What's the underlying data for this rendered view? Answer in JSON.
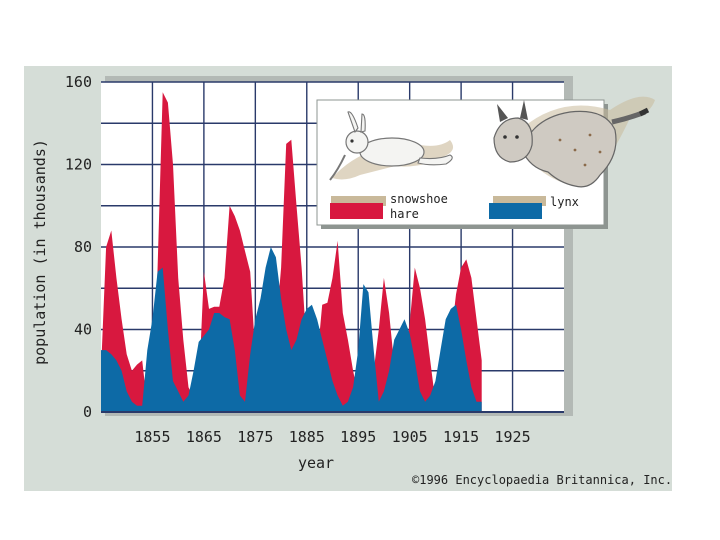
{
  "chart_data": {
    "type": "area",
    "title": "",
    "xlabel": "year",
    "ylabel": "population (in thousands)",
    "xlim": [
      1845,
      1935
    ],
    "ylim": [
      0,
      160
    ],
    "x_ticks": [
      "1855",
      "1865",
      "1875",
      "1885",
      "1895",
      "1905",
      "1915",
      "1925"
    ],
    "y_ticks": [
      "0",
      "40",
      "80",
      "120",
      "160"
    ],
    "grid": true,
    "legend_position": "top-right",
    "series": [
      {
        "name": "snowshoe hare",
        "color": "#d8183f",
        "points": [
          [
            1845,
            20
          ],
          [
            1846,
            80
          ],
          [
            1847,
            88
          ],
          [
            1848,
            65
          ],
          [
            1849,
            45
          ],
          [
            1850,
            28
          ],
          [
            1851,
            20
          ],
          [
            1852,
            23
          ],
          [
            1853,
            25
          ],
          [
            1854,
            3
          ],
          [
            1855,
            3
          ],
          [
            1856,
            70
          ],
          [
            1857,
            155
          ],
          [
            1858,
            150
          ],
          [
            1859,
            120
          ],
          [
            1860,
            65
          ],
          [
            1861,
            35
          ],
          [
            1862,
            12
          ],
          [
            1863,
            7
          ],
          [
            1864,
            10
          ],
          [
            1865,
            68
          ],
          [
            1866,
            50
          ],
          [
            1867,
            51
          ],
          [
            1868,
            51
          ],
          [
            1869,
            65
          ],
          [
            1870,
            100
          ],
          [
            1871,
            95
          ],
          [
            1872,
            88
          ],
          [
            1873,
            78
          ],
          [
            1874,
            68
          ],
          [
            1875,
            28
          ],
          [
            1876,
            10
          ],
          [
            1877,
            12
          ],
          [
            1878,
            20
          ],
          [
            1879,
            40
          ],
          [
            1880,
            70
          ],
          [
            1881,
            130
          ],
          [
            1882,
            132
          ],
          [
            1883,
            100
          ],
          [
            1884,
            70
          ],
          [
            1885,
            30
          ],
          [
            1886,
            20
          ],
          [
            1887,
            25
          ],
          [
            1888,
            52
          ],
          [
            1889,
            53
          ],
          [
            1890,
            65
          ],
          [
            1891,
            83
          ],
          [
            1892,
            48
          ],
          [
            1893,
            35
          ],
          [
            1894,
            20
          ],
          [
            1895,
            8
          ],
          [
            1896,
            10
          ],
          [
            1897,
            12
          ],
          [
            1898,
            20
          ],
          [
            1899,
            40
          ],
          [
            1900,
            65
          ],
          [
            1901,
            48
          ],
          [
            1902,
            23
          ],
          [
            1903,
            23
          ],
          [
            1904,
            25
          ],
          [
            1905,
            43
          ],
          [
            1906,
            70
          ],
          [
            1907,
            60
          ],
          [
            1908,
            45
          ],
          [
            1909,
            25
          ],
          [
            1910,
            5
          ],
          [
            1911,
            8
          ],
          [
            1912,
            15
          ],
          [
            1913,
            35
          ],
          [
            1914,
            57
          ],
          [
            1915,
            70
          ],
          [
            1916,
            74
          ],
          [
            1917,
            65
          ],
          [
            1918,
            45
          ],
          [
            1919,
            25
          ]
        ]
      },
      {
        "name": "lynx",
        "color": "#0d6aa6",
        "points": [
          [
            1845,
            30
          ],
          [
            1846,
            30
          ],
          [
            1847,
            28
          ],
          [
            1848,
            25
          ],
          [
            1849,
            20
          ],
          [
            1850,
            10
          ],
          [
            1851,
            5
          ],
          [
            1852,
            3
          ],
          [
            1853,
            3
          ],
          [
            1854,
            30
          ],
          [
            1855,
            45
          ],
          [
            1856,
            68
          ],
          [
            1857,
            70
          ],
          [
            1858,
            40
          ],
          [
            1859,
            15
          ],
          [
            1860,
            10
          ],
          [
            1861,
            5
          ],
          [
            1862,
            8
          ],
          [
            1863,
            20
          ],
          [
            1864,
            34
          ],
          [
            1865,
            37
          ],
          [
            1866,
            40
          ],
          [
            1867,
            48
          ],
          [
            1868,
            48
          ],
          [
            1869,
            46
          ],
          [
            1870,
            45
          ],
          [
            1871,
            30
          ],
          [
            1872,
            8
          ],
          [
            1873,
            5
          ],
          [
            1874,
            28
          ],
          [
            1875,
            45
          ],
          [
            1876,
            55
          ],
          [
            1877,
            70
          ],
          [
            1878,
            80
          ],
          [
            1879,
            75
          ],
          [
            1880,
            55
          ],
          [
            1881,
            40
          ],
          [
            1882,
            30
          ],
          [
            1883,
            35
          ],
          [
            1884,
            45
          ],
          [
            1885,
            50
          ],
          [
            1886,
            52
          ],
          [
            1887,
            45
          ],
          [
            1888,
            35
          ],
          [
            1889,
            25
          ],
          [
            1890,
            15
          ],
          [
            1891,
            8
          ],
          [
            1892,
            3
          ],
          [
            1893,
            5
          ],
          [
            1894,
            12
          ],
          [
            1895,
            30
          ],
          [
            1896,
            62
          ],
          [
            1897,
            58
          ],
          [
            1898,
            30
          ],
          [
            1899,
            5
          ],
          [
            1900,
            10
          ],
          [
            1901,
            20
          ],
          [
            1902,
            35
          ],
          [
            1903,
            40
          ],
          [
            1904,
            45
          ],
          [
            1905,
            38
          ],
          [
            1906,
            25
          ],
          [
            1907,
            10
          ],
          [
            1908,
            5
          ],
          [
            1909,
            8
          ],
          [
            1910,
            15
          ],
          [
            1911,
            30
          ],
          [
            1912,
            45
          ],
          [
            1913,
            50
          ],
          [
            1914,
            52
          ],
          [
            1915,
            40
          ],
          [
            1916,
            25
          ],
          [
            1917,
            12
          ],
          [
            1918,
            5
          ],
          [
            1919,
            5
          ]
        ]
      }
    ]
  },
  "legend": {
    "hare_line1": "snowshoe",
    "hare_line2": "hare",
    "lynx_label": "lynx"
  },
  "copyright": "©1996 Encyclopaedia Britannica, Inc."
}
